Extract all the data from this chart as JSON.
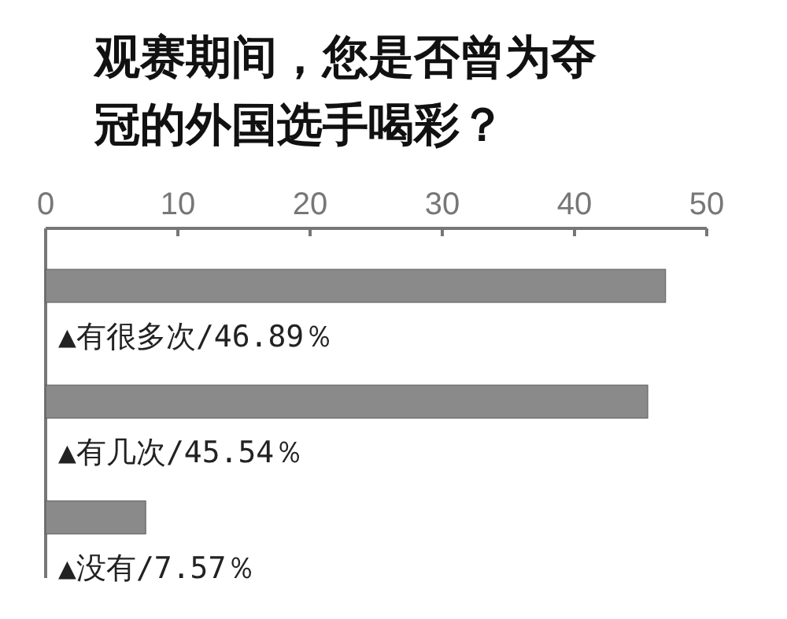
{
  "chart_data": {
    "type": "bar",
    "orientation": "horizontal",
    "title": "观赛期间，您是否曾为夺冠的外国选手喝彩？",
    "categories": [
      "▲有很多次/46.89％",
      "▲有几次/45.54％",
      "▲没有/7.57％"
    ],
    "values": [
      46.89,
      45.54,
      7.57
    ],
    "color": "#8a8a8a",
    "xlim": [
      0,
      50
    ],
    "xticks": [
      0,
      10,
      20,
      30,
      40,
      50
    ],
    "grid": false
  }
}
